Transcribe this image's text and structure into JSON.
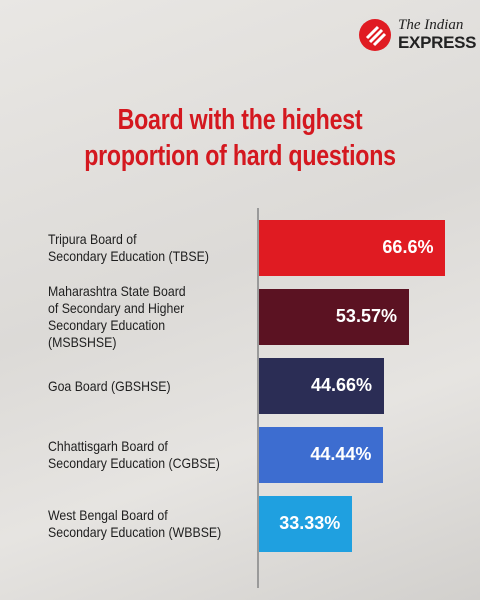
{
  "chart_data": {
    "type": "bar",
    "brand": [
      "The Indian",
      "EXPRESS"
    ],
    "title": "Board with the highest\nproportion of hard questions",
    "categories": [
      "Tripura Board of\nSecondary Education (TBSE)",
      "Maharashtra State Board\nof Secondary and Higher\nSecondary Education (MSBSHSE)",
      "Goa Board (GBSHSE)",
      "Chhattisgarh Board of\nSecondary Education (CGBSE)",
      "West Bengal Board of\nSecondary Education (WBBSE)"
    ],
    "values": [
      66.6,
      53.57,
      44.66,
      44.44,
      33.33
    ],
    "value_labels": [
      "66.6%",
      "53.57%",
      "44.66%",
      "44.44%",
      "33.33%"
    ],
    "colors": [
      "#e01b22",
      "#5b1222",
      "#2b2d55",
      "#3d6dd0",
      "#1fa0e0"
    ]
  }
}
